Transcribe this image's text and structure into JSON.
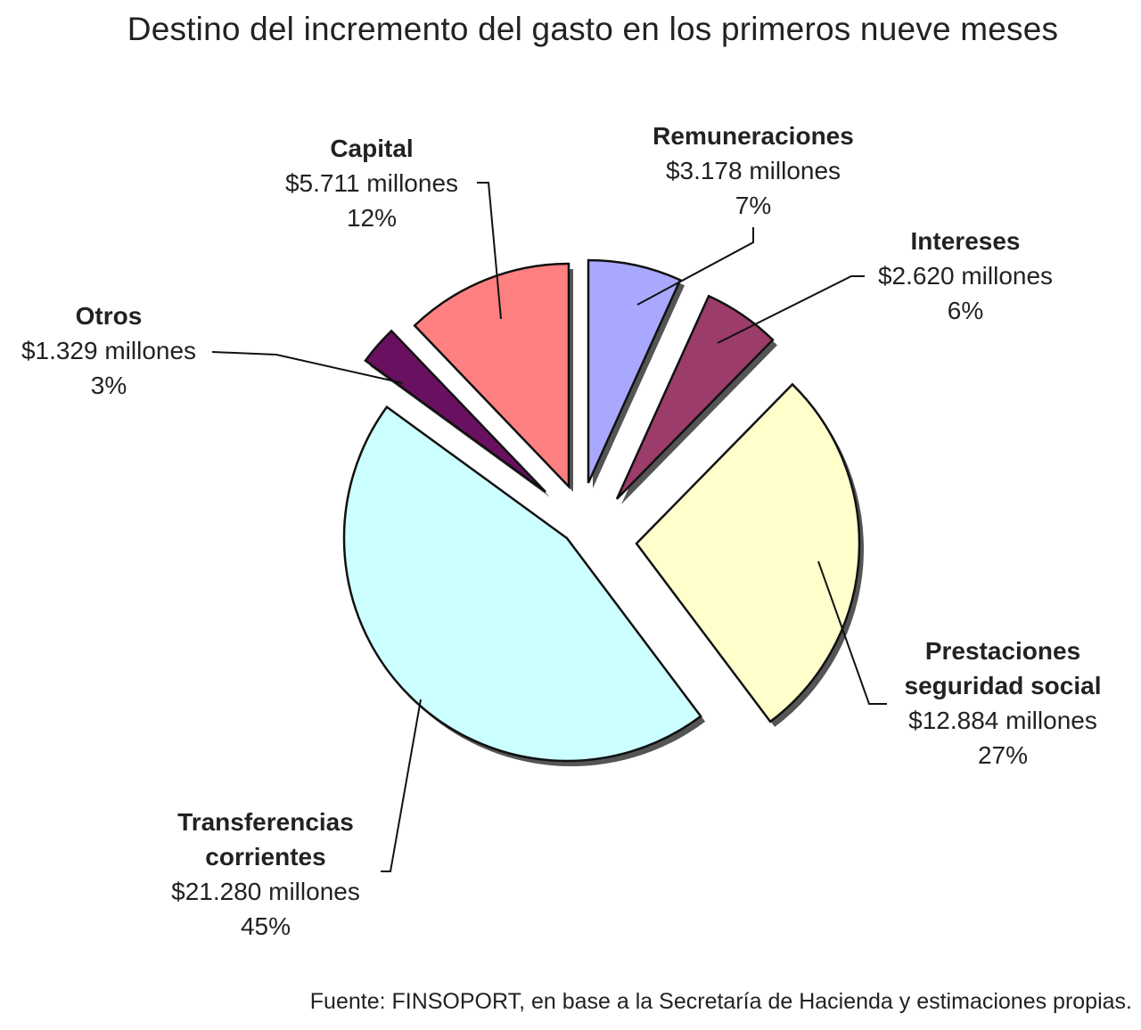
{
  "chart_data": {
    "type": "pie",
    "title": "Destino del incremento del gasto en los primeros nueve meses",
    "source": "Fuente: FINSOPORT, en base a la Secretaría de Hacienda y estimaciones propias.",
    "slices": [
      {
        "id": "remuneraciones",
        "name_lines": [
          "Remuneraciones"
        ],
        "amount": "$3.178 millones",
        "value": 3178,
        "percent": "7%",
        "color": "#a8a8ff"
      },
      {
        "id": "intereses",
        "name_lines": [
          "Intereses"
        ],
        "amount": "$2.620 millones",
        "value": 2620,
        "percent": "6%",
        "color": "#9c3c6a"
      },
      {
        "id": "prestaciones",
        "name_lines": [
          "Prestaciones",
          "seguridad social"
        ],
        "amount": "$12.884 millones",
        "value": 12884,
        "percent": "27%",
        "color": "#ffffcc"
      },
      {
        "id": "transferencias",
        "name_lines": [
          "Transferencias",
          "corrientes"
        ],
        "amount": "$21.280 millones",
        "value": 21280,
        "percent": "45%",
        "color": "#ccffff"
      },
      {
        "id": "otros",
        "name_lines": [
          "Otros"
        ],
        "amount": "$1.329 millones",
        "value": 1329,
        "percent": "3%",
        "color": "#6a1060"
      },
      {
        "id": "capital",
        "name_lines": [
          "Capital"
        ],
        "amount": "$5.711 millones",
        "value": 5711,
        "percent": "12%",
        "color": "#ff8080"
      }
    ],
    "legend": "none"
  }
}
